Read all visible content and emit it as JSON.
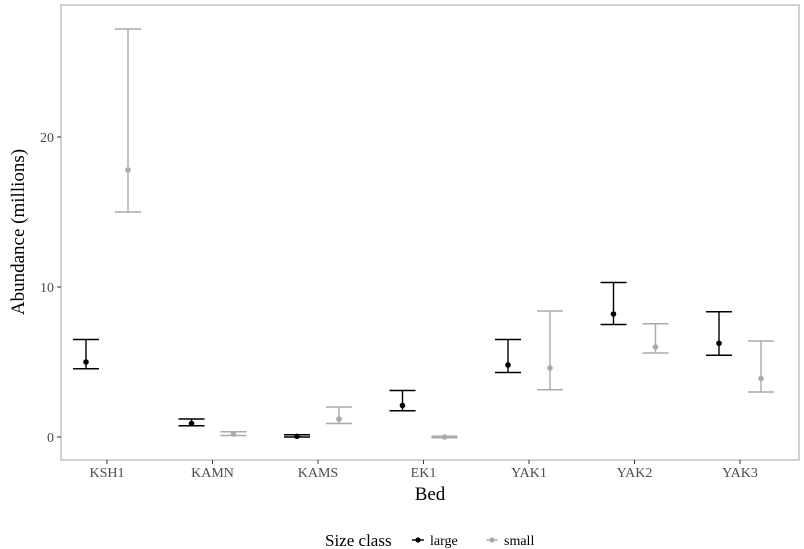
{
  "chart_data": {
    "type": "scatter",
    "subtype": "point-with-errorbars",
    "xlabel": "Bed",
    "ylabel": "Abundance (millions)",
    "categories": [
      "KSH1",
      "KAMN",
      "KAMS",
      "EK1",
      "YAK1",
      "YAK2",
      "YAK3"
    ],
    "yticks": [
      0,
      10,
      20
    ],
    "ylim": [
      -1.3,
      28.6
    ],
    "grid": false,
    "legend": {
      "title": "Size class",
      "position": "bottom"
    },
    "series": [
      {
        "name": "large",
        "color": "#000000",
        "values": [
          5.0,
          0.9,
          0.05,
          2.1,
          4.8,
          8.2,
          6.25
        ],
        "lower": [
          4.55,
          0.75,
          0.0,
          1.75,
          4.3,
          7.5,
          5.45
        ],
        "upper": [
          6.5,
          1.2,
          0.15,
          3.1,
          6.5,
          10.3,
          8.35
        ]
      },
      {
        "name": "small",
        "color": "#aaaaaa",
        "values": [
          17.8,
          0.2,
          1.2,
          0.0,
          4.6,
          6.0,
          3.9
        ],
        "lower": [
          15.0,
          0.1,
          0.9,
          -0.05,
          3.15,
          5.6,
          3.0
        ],
        "upper": [
          27.2,
          0.35,
          2.0,
          0.05,
          8.4,
          7.55,
          6.4
        ]
      }
    ]
  }
}
